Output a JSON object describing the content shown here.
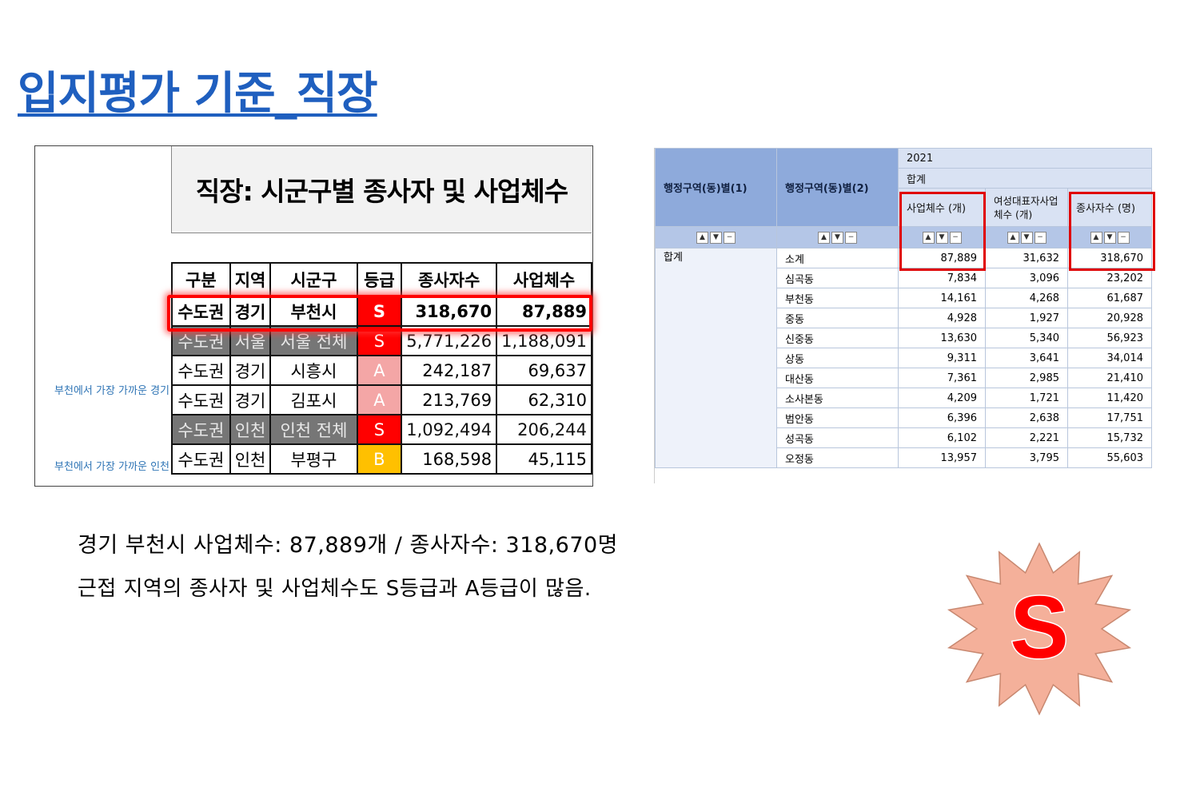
{
  "title": "입지평가 기준_직장",
  "left_panel": {
    "header": "직장: 시군구별 종사자 및 사업체수",
    "side_notes": [
      "부천에서 가장 가까운 경기",
      "부천에서 가장 가까운 인천"
    ],
    "columns": [
      "구분",
      "지역",
      "시군구",
      "등급",
      "종사자수",
      "사업체수"
    ],
    "rows": [
      {
        "c1": "수도권",
        "c2": "경기",
        "c3": "부천시",
        "c4": "S",
        "c5": "318,670",
        "c6": "87,889"
      },
      {
        "c1": "수도권",
        "c2": "서울",
        "c3": "서울 전체",
        "c4": "S",
        "c5": "5,771,226",
        "c6": "1,188,091"
      },
      {
        "c1": "수도권",
        "c2": "경기",
        "c3": "시흥시",
        "c4": "A",
        "c5": "242,187",
        "c6": "69,637"
      },
      {
        "c1": "수도권",
        "c2": "경기",
        "c3": "김포시",
        "c4": "A",
        "c5": "213,769",
        "c6": "62,310"
      },
      {
        "c1": "수도권",
        "c2": "인천",
        "c3": "인천 전체",
        "c4": "S",
        "c5": "1,092,494",
        "c6": "206,244"
      },
      {
        "c1": "수도권",
        "c2": "인천",
        "c3": "부평구",
        "c4": "B",
        "c5": "168,598",
        "c6": "45,115"
      }
    ]
  },
  "right_panel": {
    "col1": "행정구역(동)별(1)",
    "col2": "행정구역(동)별(2)",
    "year": "2021",
    "total": "합계",
    "m1": "사업체수 (개)",
    "m2": "여성대표자사업체수 (개)",
    "m3": "종사자수 (명)",
    "group": "합계",
    "rows": [
      {
        "name": "소계",
        "a": "87,889",
        "b": "31,632",
        "c": "318,670"
      },
      {
        "name": "심곡동",
        "a": "7,834",
        "b": "3,096",
        "c": "23,202"
      },
      {
        "name": "부천동",
        "a": "14,161",
        "b": "4,268",
        "c": "61,687"
      },
      {
        "name": "중동",
        "a": "4,928",
        "b": "1,927",
        "c": "20,928"
      },
      {
        "name": "신중동",
        "a": "13,630",
        "b": "5,340",
        "c": "56,923"
      },
      {
        "name": "상동",
        "a": "9,311",
        "b": "3,641",
        "c": "34,014"
      },
      {
        "name": "대산동",
        "a": "7,361",
        "b": "2,985",
        "c": "21,410"
      },
      {
        "name": "소사본동",
        "a": "4,209",
        "b": "1,721",
        "c": "11,420"
      },
      {
        "name": "범안동",
        "a": "6,396",
        "b": "2,638",
        "c": "17,751"
      },
      {
        "name": "성곡동",
        "a": "6,102",
        "b": "2,221",
        "c": "15,732"
      },
      {
        "name": "오정동",
        "a": "13,957",
        "b": "3,795",
        "c": "55,603"
      }
    ]
  },
  "summary_line1": "경기 부천시 사업체수: 87,889개 / 종사자수: 318,670명",
  "summary_line2": "근접 지역의 종사자 및 사업체수도 S등급과 A등급이 많음.",
  "badge_letter": "S",
  "colors": {
    "title": "#1f5fbf",
    "grade_S": "#ff0000",
    "grade_A": "#f4a6a6",
    "grade_B": "#ffc000",
    "badge_fill": "#f4b09a"
  }
}
